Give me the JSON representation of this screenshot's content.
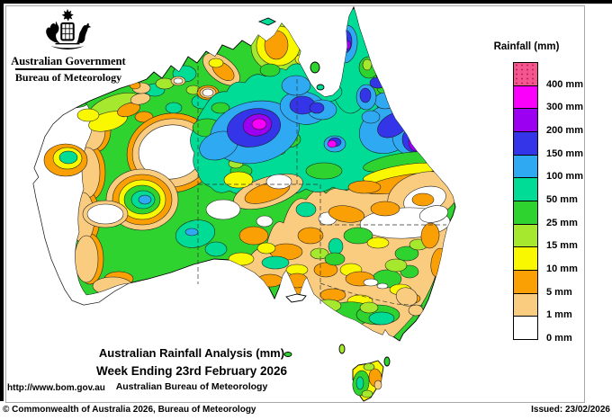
{
  "header": {
    "gov_title": "Australian Government",
    "bureau_title": "Bureau of Meteorology"
  },
  "legend": {
    "title": "Rainfall (mm)",
    "segments": [
      {
        "label": "400 mm",
        "color": "#f4578d",
        "dotted": true
      },
      {
        "label": "300 mm",
        "color": "#fa00fa",
        "dotted": false
      },
      {
        "label": "200 mm",
        "color": "#9c00f0",
        "dotted": false
      },
      {
        "label": "150 mm",
        "color": "#3434e8",
        "dotted": false
      },
      {
        "label": "100 mm",
        "color": "#2fa9f2",
        "dotted": false
      },
      {
        "label": "50 mm",
        "color": "#00dc96",
        "dotted": false
      },
      {
        "label": "25 mm",
        "color": "#2fd32f",
        "dotted": false
      },
      {
        "label": "15 mm",
        "color": "#a6e82e",
        "dotted": false
      },
      {
        "label": "10 mm",
        "color": "#faf800",
        "dotted": false
      },
      {
        "label": "5 mm",
        "color": "#faa005",
        "dotted": false
      },
      {
        "label": "1 mm",
        "color": "#facc80",
        "dotted": false
      },
      {
        "label": "0 mm",
        "color": "#ffffff",
        "dotted": false
      }
    ]
  },
  "titles": {
    "line1": "Australian Rainfall Analysis (mm)",
    "line2": "Week Ending 23rd February 2026",
    "line3": "Australian Bureau of Meteorology"
  },
  "footer": {
    "url": "http://www.bom.gov.au",
    "copyright": "© Commonwealth of Australia 2026, Bureau of Meteorology",
    "issued": "Issued: 23/02/2026"
  }
}
